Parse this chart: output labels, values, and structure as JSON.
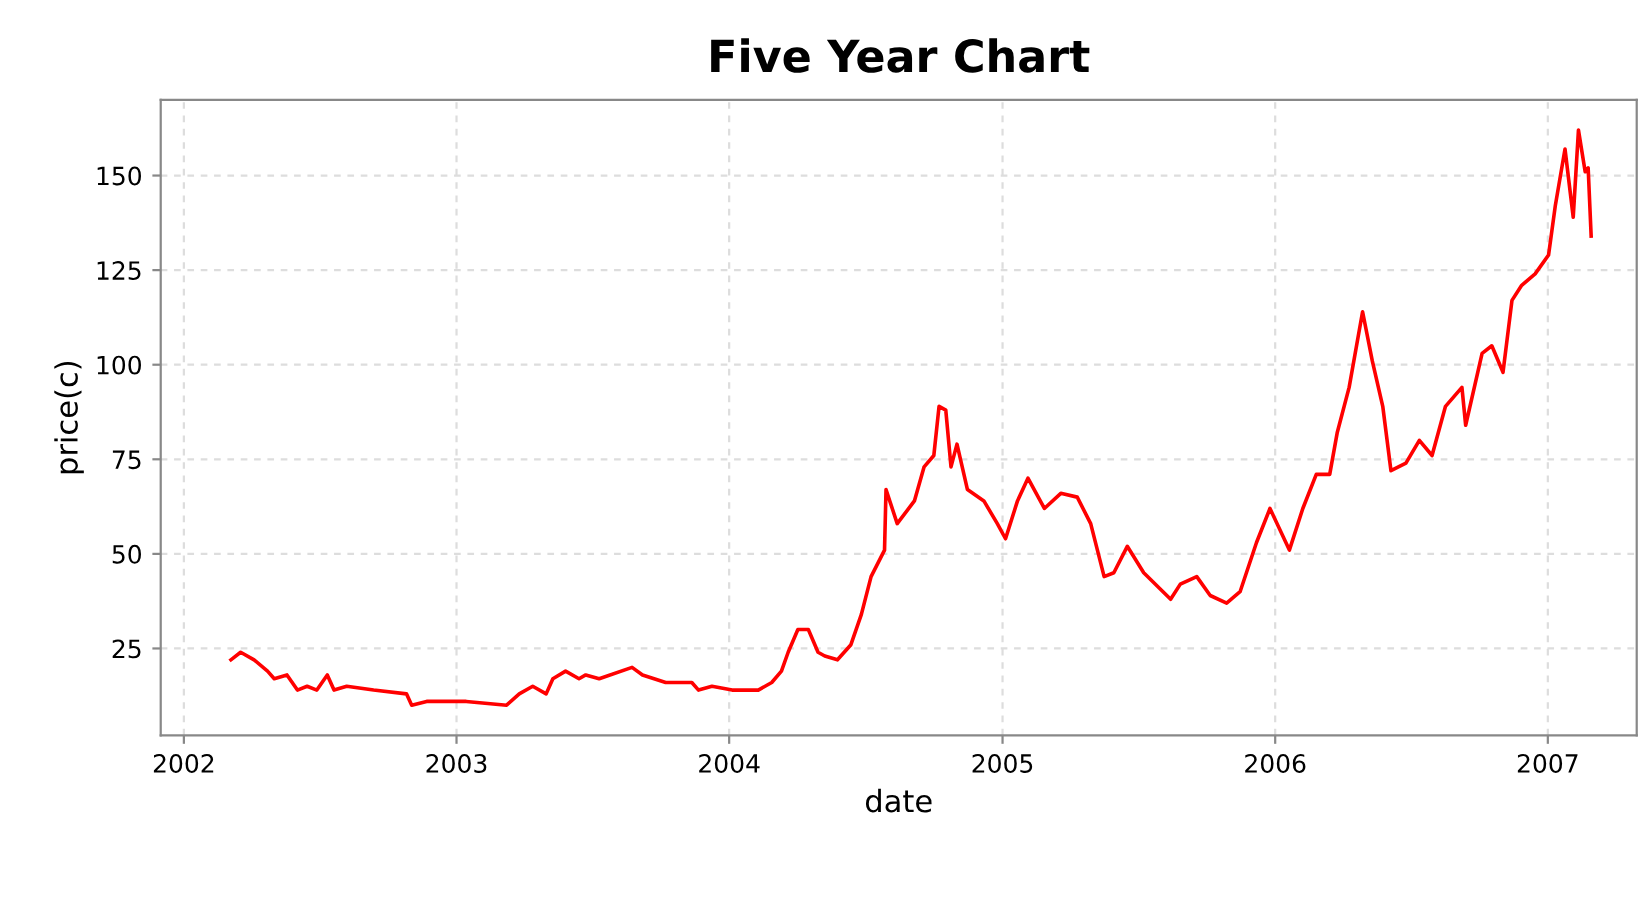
{
  "chart_data": {
    "type": "line",
    "title": "Five Year Chart",
    "xlabel": "date",
    "ylabel": "price(c)",
    "xlim": [
      "2001-12-01",
      "2007-04-30"
    ],
    "ylim": [
      2,
      170
    ],
    "xticks": [
      {
        "value": "2002",
        "label": "2002"
      },
      {
        "value": "2003",
        "label": "2003"
      },
      {
        "value": "2004",
        "label": "2004"
      },
      {
        "value": "2005",
        "label": "2005"
      },
      {
        "value": "2006",
        "label": "2006"
      },
      {
        "value": "2007",
        "label": "2007"
      }
    ],
    "yticks": [
      25,
      50,
      75,
      100,
      125,
      150
    ],
    "grid": true,
    "marker": "none",
    "line_style": "solid",
    "x": [
      "2002-03-05",
      "2002-03-18",
      "2002-04-05",
      "2002-04-23",
      "2002-05-02",
      "2002-05-19",
      "2002-06-02",
      "2002-06-15",
      "2002-06-28",
      "2002-07-12",
      "2002-07-21",
      "2002-08-07",
      "2002-09-12",
      "2002-10-26",
      "2002-11-02",
      "2002-11-22",
      "2003-01-14",
      "2003-03-09",
      "2003-03-26",
      "2003-04-13",
      "2003-05-01",
      "2003-05-10",
      "2003-05-27",
      "2003-06-14",
      "2003-06-23",
      "2003-07-11",
      "2003-08-24",
      "2003-09-07",
      "2003-10-08",
      "2003-11-12",
      "2003-11-21",
      "2003-12-09",
      "2004-01-05",
      "2004-02-09",
      "2004-02-27",
      "2004-03-11",
      "2004-03-20",
      "2004-04-02",
      "2004-04-16",
      "2004-04-29",
      "2004-05-08",
      "2004-05-25",
      "2004-06-12",
      "2004-06-26",
      "2004-07-09",
      "2004-07-27",
      "2004-07-29",
      "2004-08-13",
      "2004-09-05",
      "2004-09-18",
      "2004-10-01",
      "2004-10-08",
      "2004-10-17",
      "2004-10-24",
      "2004-11-01",
      "2004-11-15",
      "2004-12-07",
      "2004-12-25",
      "2005-01-05",
      "2005-01-21",
      "2005-02-04",
      "2005-02-26",
      "2005-03-20",
      "2005-04-11",
      "2005-04-29",
      "2005-05-17",
      "2005-05-30",
      "2005-06-17",
      "2005-07-09",
      "2005-08-14",
      "2005-08-27",
      "2005-09-18",
      "2005-10-06",
      "2005-10-28",
      "2005-11-15",
      "2005-12-07",
      "2005-12-25",
      "2006-01-20",
      "2006-02-07",
      "2006-02-25",
      "2006-03-15",
      "2006-03-25",
      "2006-04-10",
      "2006-04-28",
      "2006-05-11",
      "2006-05-25",
      "2006-06-05",
      "2006-06-25",
      "2006-07-13",
      "2006-07-30",
      "2006-08-17",
      "2006-09-08",
      "2006-09-13",
      "2006-10-05",
      "2006-10-18",
      "2006-11-02",
      "2006-11-14",
      "2006-11-27",
      "2006-12-15",
      "2007-01-02",
      "2007-01-11",
      "2007-01-24",
      "2007-02-04",
      "2007-02-11",
      "2007-02-20",
      "2007-02-24",
      "2007-02-28"
    ],
    "series": [
      {
        "color": "#ff0000",
        "values": [
          22,
          24,
          22,
          19,
          17,
          18,
          14,
          15,
          14,
          18,
          14,
          15,
          14,
          13,
          10,
          11,
          11,
          10,
          13,
          15,
          13,
          17,
          19,
          17,
          18,
          17,
          20,
          18,
          16,
          16,
          14,
          15,
          14,
          14,
          16,
          19,
          24,
          30,
          30,
          24,
          23,
          22,
          26,
          34,
          44,
          51,
          67,
          58,
          64,
          73,
          76,
          89,
          88,
          73,
          79,
          67,
          64,
          58,
          54,
          64,
          70,
          62,
          66,
          65,
          58,
          44,
          45,
          52,
          45,
          38,
          42,
          44,
          39,
          37,
          40,
          53,
          62,
          51,
          62,
          71,
          71,
          82,
          94,
          114,
          101,
          89,
          72,
          74,
          80,
          76,
          89,
          94,
          84,
          103,
          105,
          98,
          117,
          121,
          124,
          129,
          142,
          157,
          139,
          162,
          151,
          152,
          134
        ]
      }
    ]
  }
}
